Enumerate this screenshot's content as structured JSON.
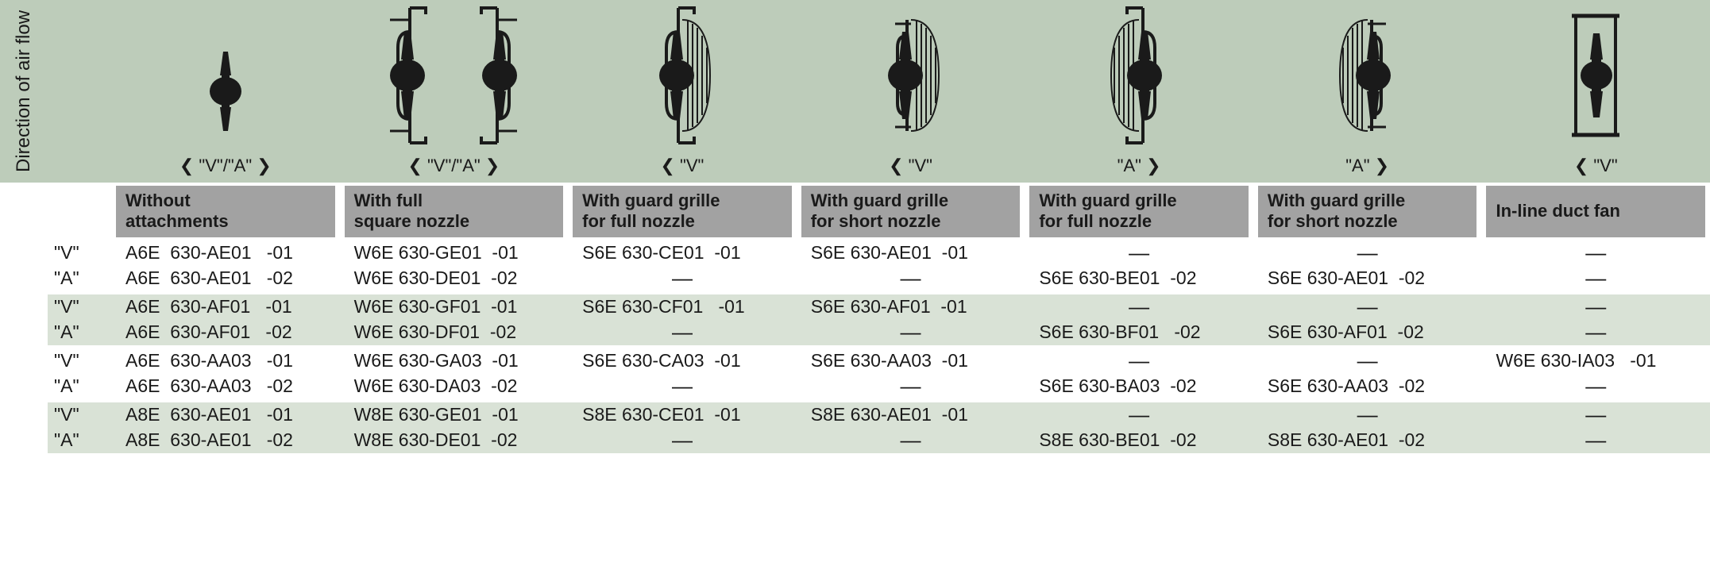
{
  "axis_label": "Direction of air flow",
  "columns": [
    {
      "dir": "❮ \"V\"/\"A\" ❯",
      "header": "Without\nattachments",
      "icon": "bare"
    },
    {
      "dir": "❮ \"V\"/\"A\" ❯",
      "header": "With full\nsquare nozzle",
      "icon": "full_nozzle_pair"
    },
    {
      "dir": "❮ \"V\"",
      "header": "With guard grille\nfor full nozzle",
      "icon": "grille_full_v"
    },
    {
      "dir": "❮ \"V\"",
      "header": "With guard grille\nfor short nozzle",
      "icon": "grille_short_v"
    },
    {
      "dir": "\"A\" ❯",
      "header": "With guard grille\nfor full nozzle",
      "icon": "grille_full_a"
    },
    {
      "dir": "\"A\" ❯",
      "header": "With guard grille\nfor short nozzle",
      "icon": "grille_short_a"
    },
    {
      "dir": "❮ \"V\"",
      "header": "In-line duct fan",
      "icon": "duct"
    }
  ],
  "row_labels": [
    "\"V\"",
    "\"A\""
  ],
  "groups": [
    [
      [
        "A6E  630-AE01   -01",
        "W6E 630-GE01  -01",
        "S6E 630-CE01  -01",
        "S6E 630-AE01  -01",
        "—",
        "—",
        "—"
      ],
      [
        "A6E  630-AE01   -02",
        "W6E 630-DE01  -02",
        "—",
        "—",
        "S6E 630-BE01  -02",
        "S6E 630-AE01  -02",
        "—"
      ]
    ],
    [
      [
        "A6E  630-AF01   -01",
        "W6E 630-GF01  -01",
        "S6E 630-CF01   -01",
        "S6E 630-AF01  -01",
        "—",
        "—",
        "—"
      ],
      [
        "A6E  630-AF01   -02",
        "W6E 630-DF01  -02",
        "—",
        "—",
        "S6E 630-BF01   -02",
        "S6E 630-AF01  -02",
        "—"
      ]
    ],
    [
      [
        "A6E  630-AA03   -01",
        "W6E 630-GA03  -01",
        "S6E 630-CA03  -01",
        "S6E 630-AA03  -01",
        "—",
        "—",
        "W6E 630-IA03   -01"
      ],
      [
        "A6E  630-AA03   -02",
        "W6E 630-DA03  -02",
        "—",
        "—",
        "S6E 630-BA03  -02",
        "S6E 630-AA03  -02",
        "—"
      ]
    ],
    [
      [
        "A8E  630-AE01   -01",
        "W8E 630-GE01  -01",
        "S8E 630-CE01  -01",
        "S8E 630-AE01  -01",
        "—",
        "—",
        "—"
      ],
      [
        "A8E  630-AE01   -02",
        "W8E 630-DE01  -02",
        "—",
        "—",
        "S8E 630-BE01  -02",
        "S8E 630-AE01  -02",
        "—"
      ]
    ]
  ],
  "colors": {
    "bg_green": "#bdccba",
    "bg_green_light": "#d9e2d6",
    "header_grey": "#a2a2a2",
    "text": "#1a1a1a"
  }
}
